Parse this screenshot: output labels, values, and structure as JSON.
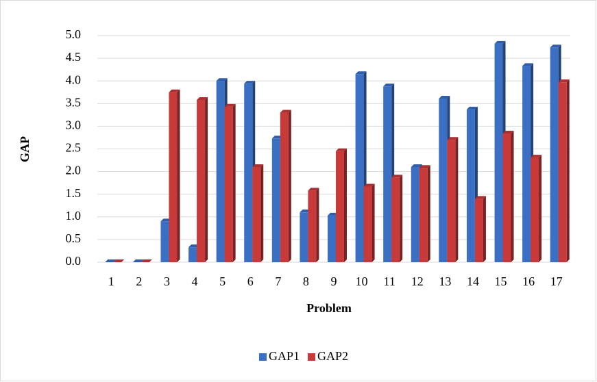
{
  "chart_data": {
    "type": "bar3d",
    "x_label": "Problem",
    "y_label": "GAP",
    "categories": [
      "1",
      "2",
      "3",
      "4",
      "5",
      "6",
      "7",
      "8",
      "9",
      "10",
      "11",
      "12",
      "13",
      "14",
      "15",
      "16",
      "17"
    ],
    "series": [
      {
        "name": "GAP1",
        "color": "#3a6fc4",
        "values": [
          0,
          0,
          0.9,
          0.33,
          4.0,
          3.94,
          2.73,
          1.1,
          1.03,
          4.15,
          3.88,
          2.1,
          3.61,
          3.37,
          4.82,
          4.33,
          4.74
        ]
      },
      {
        "name": "GAP2",
        "color": "#c83a3a",
        "values": [
          0,
          0,
          3.75,
          3.58,
          3.43,
          2.1,
          3.3,
          1.58,
          2.45,
          1.67,
          1.87,
          2.08,
          2.7,
          1.4,
          2.84,
          2.31,
          3.97
        ]
      }
    ],
    "ylim": [
      0,
      5
    ],
    "yticks": [
      {
        "value": 0,
        "label": "0.0"
      },
      {
        "value": 0.5,
        "label": "0.5"
      },
      {
        "value": 1,
        "label": "1.0"
      },
      {
        "value": 1.5,
        "label": "1.5"
      },
      {
        "value": 2,
        "label": "2.0"
      },
      {
        "value": 2.5,
        "label": "2.5"
      },
      {
        "value": 3,
        "label": "3.0"
      },
      {
        "value": 3.5,
        "label": "3.5"
      },
      {
        "value": 4,
        "label": "4.0"
      },
      {
        "value": 4.5,
        "label": "4.5"
      },
      {
        "value": 5,
        "label": "5.0"
      }
    ],
    "grid": true,
    "legend": "bottom"
  }
}
